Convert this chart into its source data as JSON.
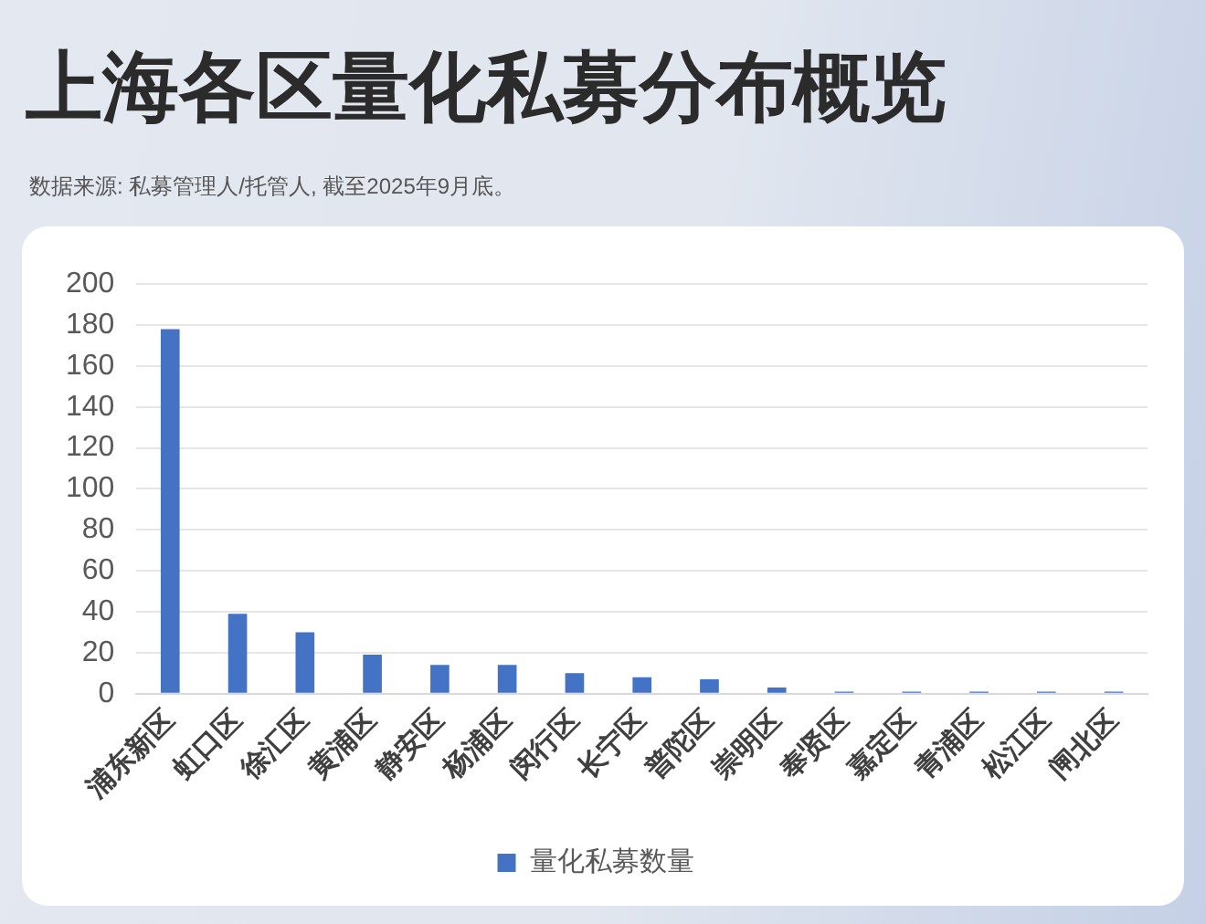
{
  "chart_data": {
    "type": "bar",
    "title": "上海各区量化私募分布概览",
    "annotations": [
      "数据来源: 私募管理人/托管人, 截至2025年9月底。"
    ],
    "categories": [
      "浦东新区",
      "虹口区",
      "徐汇区",
      "黄浦区",
      "静安区",
      "杨浦区",
      "闵行区",
      "长宁区",
      "普陀区",
      "崇明区",
      "奉贤区",
      "嘉定区",
      "青浦区",
      "松江区",
      "闸北区"
    ],
    "series": [
      {
        "name": "量化私募数量",
        "color": "#4472c4",
        "values": [
          178,
          39,
          30,
          19,
          14,
          14,
          10,
          8,
          7,
          3,
          1,
          1,
          1,
          1,
          1
        ]
      }
    ],
    "ylim": [
      0,
      200
    ],
    "yticks": [
      0,
      20,
      40,
      60,
      80,
      100,
      120,
      140,
      160,
      180,
      200
    ],
    "grid": "y",
    "legend": "bottom"
  }
}
